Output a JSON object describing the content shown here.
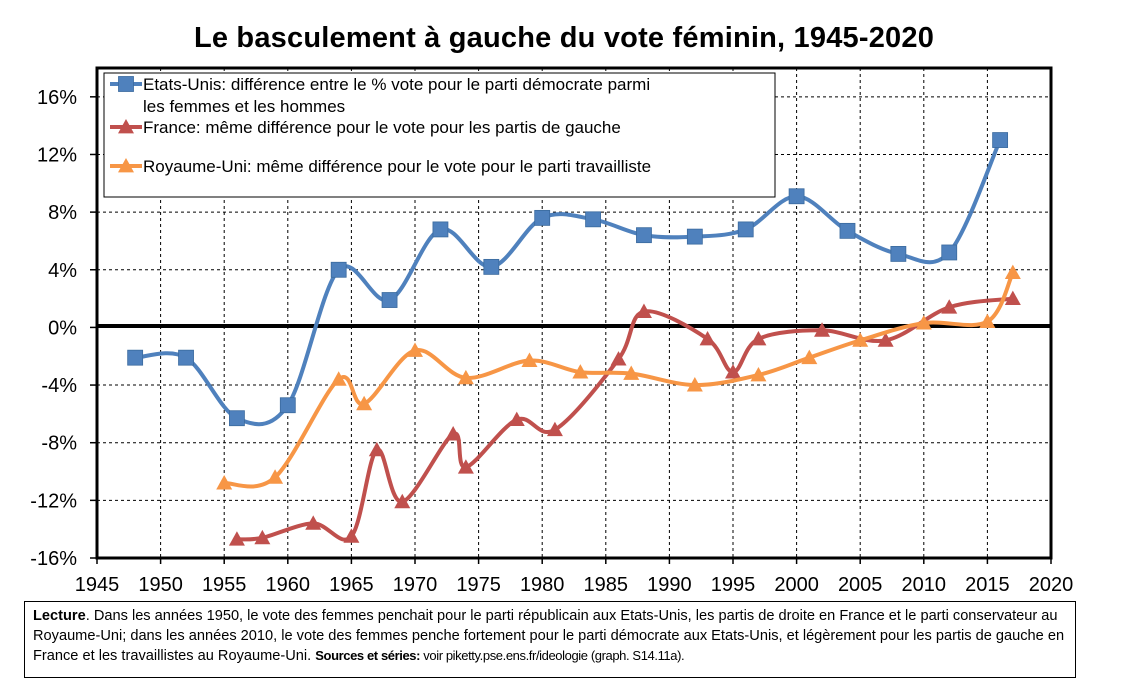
{
  "title": "Le basculement à gauche du vote féminin, 1945-2020",
  "caption": {
    "label": "Lecture",
    "text": ". Dans les années 1950, le vote des femmes penchait pour le parti républicain aux Etats-Unis, les partis de droite en France et le parti conservateur au Royaume-Uni; dans les années 2010, le vote des femmes penche fortement pour le parti démocrate aux Etats-Unis, et légèrement pour les partis de gauche en France et les travaillistes au Royaume-Uni. ",
    "sources_label": "Sources et séries:",
    "sources_text": " voir piketty.pse.ens.fr/ideologie (graph. S14.11a)."
  },
  "chart_data": {
    "type": "line",
    "title": "Le basculement à gauche du vote féminin, 1945-2020",
    "xlabel": "",
    "ylabel": "",
    "xlim": [
      1945,
      2020
    ],
    "ylim": [
      -16,
      18
    ],
    "x_ticks": [
      "1945",
      "1950",
      "1955",
      "1960",
      "1965",
      "1970",
      "1975",
      "1980",
      "1985",
      "1990",
      "1995",
      "2000",
      "2005",
      "2010",
      "2015",
      "2020"
    ],
    "y_ticks": [
      "16%",
      "12%",
      "8%",
      "4%",
      "0%",
      "-4%",
      "-8%",
      "-12%",
      "-16%"
    ],
    "y_tick_values": [
      16,
      12,
      8,
      4,
      0,
      -4,
      -8,
      -12,
      -16
    ],
    "grid": true,
    "legend_position": "top-left",
    "series": [
      {
        "name": "Etats-Unis: différence entre le % vote pour le parti démocrate parmi les femmes et les hommes",
        "legend_lines": [
          "Etats-Unis: différence entre le % vote pour le parti démocrate parmi",
          "les femmes et les hommes"
        ],
        "color": "#4F81BD",
        "marker": "square",
        "points": [
          [
            1948,
            -2.1
          ],
          [
            1952,
            -2.1
          ],
          [
            1956,
            -6.3
          ],
          [
            1960,
            -5.4
          ],
          [
            1964,
            4.0
          ],
          [
            1968,
            1.9
          ],
          [
            1972,
            6.8
          ],
          [
            1976,
            4.2
          ],
          [
            1980,
            7.6
          ],
          [
            1984,
            7.5
          ],
          [
            1988,
            6.4
          ],
          [
            1992,
            6.3
          ],
          [
            1996,
            6.8
          ],
          [
            2000,
            9.1
          ],
          [
            2004,
            6.7
          ],
          [
            2008,
            5.1
          ],
          [
            2012,
            5.2
          ],
          [
            2016,
            13.0
          ]
        ]
      },
      {
        "name": "France: même différence pour le vote pour les partis de gauche",
        "legend_lines": [
          "France: même différence pour le vote pour les partis de gauche"
        ],
        "color": "#C0504D",
        "marker": "triangle",
        "points": [
          [
            1956,
            -14.7
          ],
          [
            1958,
            -14.6
          ],
          [
            1962,
            -13.6
          ],
          [
            1965,
            -14.5
          ],
          [
            1967,
            -8.5
          ],
          [
            1969,
            -12.1
          ],
          [
            1973,
            -7.4
          ],
          [
            1974,
            -9.7
          ],
          [
            1978,
            -6.4
          ],
          [
            1981,
            -7.1
          ],
          [
            1986,
            -2.2
          ],
          [
            1988,
            1.1
          ],
          [
            1993,
            -0.8
          ],
          [
            1995,
            -3.1
          ],
          [
            1997,
            -0.8
          ],
          [
            2002,
            -0.2
          ],
          [
            2007,
            -0.9
          ],
          [
            2012,
            1.4
          ],
          [
            2017,
            2.0
          ]
        ]
      },
      {
        "name": "Royaume-Uni: même différence pour le vote pour le parti travailliste",
        "legend_lines": [
          "Royaume-Uni: même différence pour le vote pour le parti travailliste"
        ],
        "color": "#F79646",
        "marker": "triangle",
        "points": [
          [
            1955,
            -10.8
          ],
          [
            1959,
            -10.4
          ],
          [
            1964,
            -3.6
          ],
          [
            1966,
            -5.3
          ],
          [
            1970,
            -1.6
          ],
          [
            1974,
            -3.5
          ],
          [
            1979,
            -2.3
          ],
          [
            1983,
            -3.1
          ],
          [
            1987,
            -3.2
          ],
          [
            1992,
            -4.0
          ],
          [
            1997,
            -3.3
          ],
          [
            2001,
            -2.1
          ],
          [
            2005,
            -0.9
          ],
          [
            2010,
            0.3
          ],
          [
            2015,
            0.4
          ],
          [
            2017,
            3.8
          ]
        ]
      }
    ]
  }
}
